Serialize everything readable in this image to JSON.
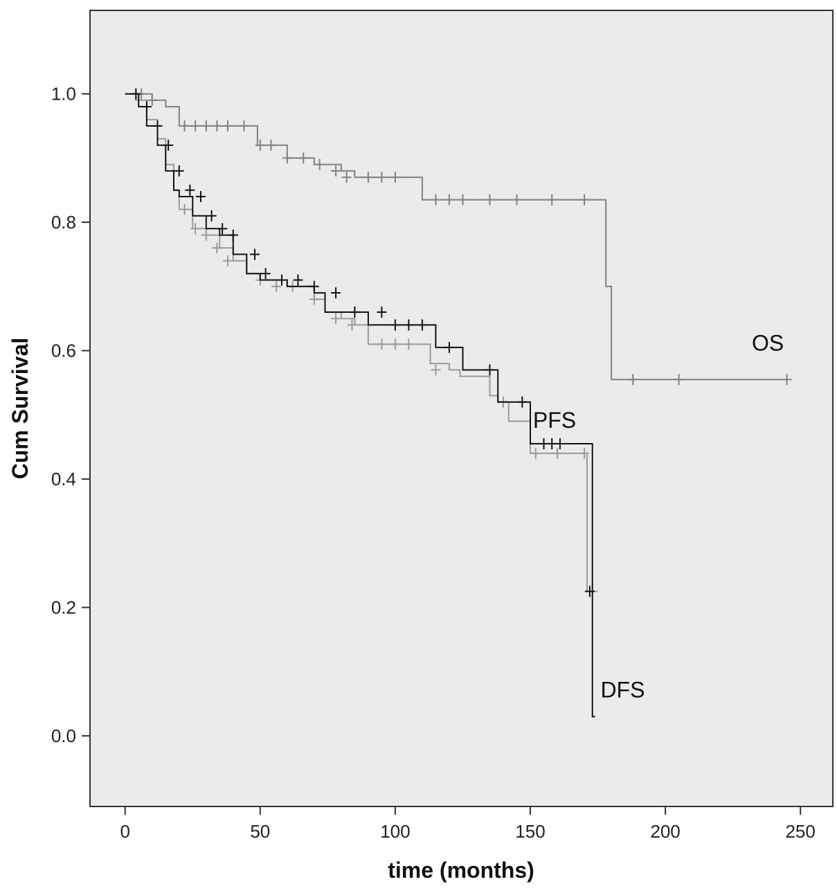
{
  "chart_data": {
    "type": "line",
    "title": "",
    "xlabel": "time (months)",
    "ylabel": "Cum Survival",
    "xlim": [
      -13,
      262
    ],
    "ylim": [
      -0.11,
      1.13
    ],
    "xticks": [
      0,
      50,
      100,
      150,
      200,
      250
    ],
    "yticks": [
      0.0,
      0.2,
      0.4,
      0.6,
      0.8,
      1.0
    ],
    "xtick_labels": [
      "0",
      "50",
      "100",
      "150",
      "200",
      "250"
    ],
    "ytick_labels": [
      "0.0",
      "0.2",
      "0.4",
      "0.6",
      "0.8",
      "1.0"
    ],
    "grid": false,
    "plot_background": "#ebebeb",
    "step": true,
    "series": [
      {
        "name": "OS",
        "color": "#808080",
        "x": [
          0,
          5,
          10,
          15,
          20,
          48,
          49,
          55,
          60,
          65,
          70,
          75,
          80,
          85,
          90,
          109,
          110,
          120,
          150,
          170,
          177,
          178,
          179,
          180,
          200,
          245
        ],
        "y": [
          1.0,
          1.0,
          0.99,
          0.98,
          0.95,
          0.95,
          0.92,
          0.92,
          0.9,
          0.9,
          0.89,
          0.89,
          0.88,
          0.87,
          0.87,
          0.87,
          0.835,
          0.835,
          0.835,
          0.835,
          0.835,
          0.7,
          0.7,
          0.555,
          0.555,
          0.555
        ],
        "censor_x": [
          6,
          10,
          22,
          26,
          30,
          34,
          38,
          44,
          50,
          54,
          60,
          66,
          72,
          78,
          82,
          90,
          95,
          100,
          115,
          120,
          125,
          135,
          145,
          158,
          170,
          188,
          205,
          245
        ],
        "censor_y": [
          1.0,
          0.99,
          0.95,
          0.95,
          0.95,
          0.95,
          0.95,
          0.95,
          0.92,
          0.92,
          0.9,
          0.9,
          0.89,
          0.88,
          0.87,
          0.87,
          0.87,
          0.87,
          0.835,
          0.835,
          0.835,
          0.835,
          0.835,
          0.835,
          0.835,
          0.555,
          0.555,
          0.555
        ]
      },
      {
        "name": "PFS",
        "color": "#9a9a9a",
        "x": [
          0,
          4,
          8,
          12,
          15,
          18,
          20,
          25,
          30,
          35,
          40,
          45,
          50,
          60,
          70,
          74,
          80,
          85,
          90,
          100,
          112,
          113,
          120,
          124,
          135,
          138,
          142,
          150,
          168,
          171,
          175
        ],
        "y": [
          1.0,
          0.99,
          0.96,
          0.93,
          0.89,
          0.85,
          0.82,
          0.79,
          0.78,
          0.76,
          0.74,
          0.72,
          0.71,
          0.7,
          0.68,
          0.66,
          0.65,
          0.64,
          0.61,
          0.61,
          0.61,
          0.58,
          0.57,
          0.56,
          0.53,
          0.52,
          0.49,
          0.44,
          0.44,
          0.225,
          0.225
        ],
        "censor_x": [
          22,
          26,
          30,
          34,
          38,
          50,
          56,
          62,
          70,
          78,
          84,
          95,
          100,
          105,
          115,
          140,
          152,
          160,
          170
        ],
        "censor_y": [
          0.82,
          0.79,
          0.78,
          0.76,
          0.74,
          0.71,
          0.7,
          0.7,
          0.68,
          0.65,
          0.64,
          0.61,
          0.61,
          0.61,
          0.57,
          0.52,
          0.44,
          0.44,
          0.44
        ]
      },
      {
        "name": "DFS",
        "color": "#111111",
        "x": [
          0,
          5,
          8,
          12,
          15,
          18,
          20,
          25,
          30,
          35,
          40,
          45,
          50,
          55,
          60,
          70,
          74,
          80,
          90,
          100,
          114,
          115,
          124,
          125,
          137,
          138,
          149,
          150,
          168,
          173,
          174
        ],
        "y": [
          1.0,
          0.98,
          0.95,
          0.92,
          0.88,
          0.85,
          0.84,
          0.81,
          0.79,
          0.78,
          0.75,
          0.72,
          0.71,
          0.71,
          0.7,
          0.69,
          0.66,
          0.66,
          0.64,
          0.64,
          0.64,
          0.605,
          0.605,
          0.57,
          0.57,
          0.52,
          0.52,
          0.455,
          0.455,
          0.03,
          0.03
        ],
        "censor_x": [
          4,
          8,
          12,
          16,
          20,
          24,
          28,
          32,
          36,
          40,
          48,
          52,
          58,
          64,
          70,
          78,
          85,
          95,
          100,
          105,
          110,
          120,
          135,
          147,
          155,
          158,
          161,
          172
        ],
        "censor_y": [
          1.0,
          0.98,
          0.95,
          0.92,
          0.88,
          0.85,
          0.84,
          0.81,
          0.79,
          0.78,
          0.75,
          0.72,
          0.71,
          0.71,
          0.7,
          0.69,
          0.66,
          0.66,
          0.64,
          0.64,
          0.64,
          0.605,
          0.57,
          0.52,
          0.455,
          0.455,
          0.455,
          0.225
        ]
      }
    ],
    "annotations": [
      {
        "text": "OS",
        "x": 232,
        "y": 0.6
      },
      {
        "text": "PFS",
        "x": 151,
        "y": 0.48
      },
      {
        "text": "DFS",
        "x": 176,
        "y": 0.06
      }
    ]
  }
}
